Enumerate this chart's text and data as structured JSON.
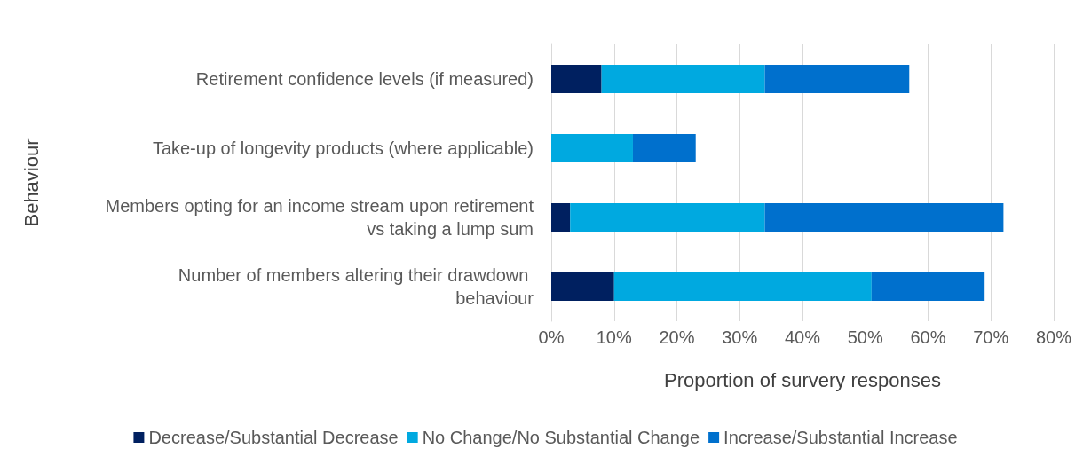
{
  "chart_data": {
    "type": "bar",
    "orientation": "horizontal",
    "stacked": true,
    "xlabel": "Proportion of survery responses",
    "ylabel": "Behaviour",
    "categories": [
      "Retirement confidence levels (if measured)",
      "Take-up of longevity products (where applicable)",
      "Members opting for an income stream upon retirement vs taking a lump sum",
      "Number of members altering their drawdown behaviour"
    ],
    "series": [
      {
        "name": "Decrease/Substantial Decrease",
        "color": "#002060",
        "values": [
          8,
          0,
          3,
          10
        ]
      },
      {
        "name": "No Change/No Substantial Change",
        "color": "#00a9e0",
        "values": [
          26,
          13,
          31,
          41
        ]
      },
      {
        "name": "Increase/Substantial Increase",
        "color": "#0070cd",
        "values": [
          23,
          10,
          38,
          18
        ]
      }
    ],
    "xlim": [
      0,
      80
    ],
    "xticks": [
      {
        "value": 0,
        "label": "0%"
      },
      {
        "value": 10,
        "label": "10%"
      },
      {
        "value": 20,
        "label": "20%"
      },
      {
        "value": 30,
        "label": "30%"
      },
      {
        "value": 40,
        "label": "40%"
      },
      {
        "value": 50,
        "label": "50%"
      },
      {
        "value": 60,
        "label": "60%"
      },
      {
        "value": 70,
        "label": "70%"
      },
      {
        "value": 80,
        "label": "80%"
      }
    ],
    "grid": "x",
    "legend": "bottom"
  }
}
